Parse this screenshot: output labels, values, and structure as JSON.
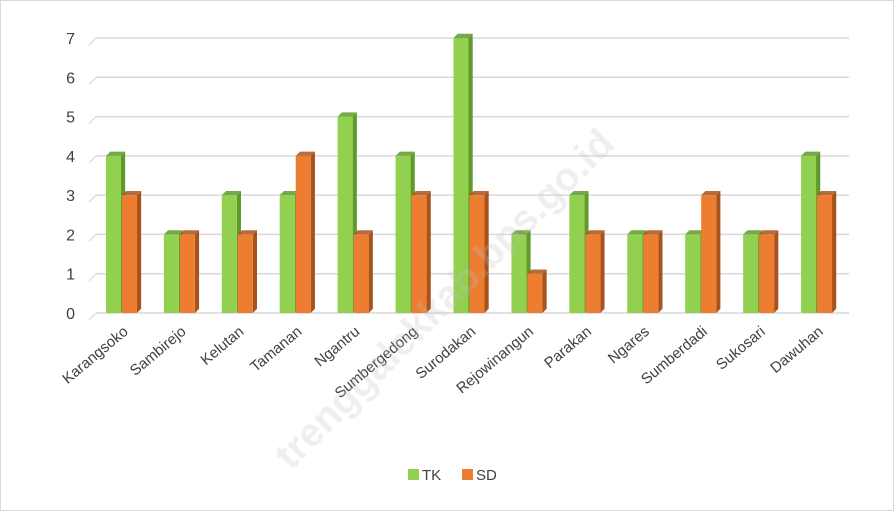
{
  "chart_data": {
    "type": "bar",
    "categories": [
      "Karangsoko",
      "Sambirejo",
      "Kelutan",
      "Tamanan",
      "Ngantru",
      "Sumbergedong",
      "Surodakan",
      "Rejowinangun",
      "Parakan",
      "Ngares",
      "Sumberdadi",
      "Sukosari",
      "Dawuhan"
    ],
    "series": [
      {
        "name": "TK",
        "values": [
          4,
          2,
          3,
          3,
          5,
          4,
          7,
          2,
          3,
          2,
          2,
          2,
          4
        ],
        "color": "#92d050",
        "dark": "#5f9a2a"
      },
      {
        "name": "SD",
        "values": [
          3,
          2,
          2,
          4,
          2,
          3,
          3,
          1,
          2,
          2,
          3,
          2,
          3
        ],
        "color": "#ed7d31",
        "dark": "#a8521c"
      }
    ],
    "yticks": [
      "0",
      "1",
      "2",
      "3",
      "4",
      "5",
      "6",
      "7"
    ],
    "ylim": [
      0,
      7
    ],
    "grid": true,
    "legend": "bottom",
    "style": "3d-clustered-column"
  },
  "watermark": "trenggalekkab.bps.go.id"
}
